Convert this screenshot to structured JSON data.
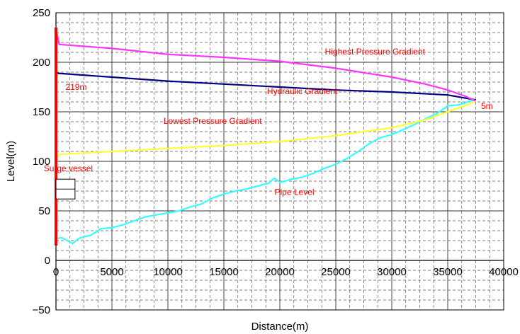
{
  "chart_data": {
    "type": "line",
    "xlabel": "Distance(m)",
    "ylabel": "Level(m)",
    "xlim": [
      0,
      40000
    ],
    "ylim": [
      -50,
      250
    ],
    "x_ticks": [
      0,
      5000,
      10000,
      15000,
      20000,
      25000,
      30000,
      35000,
      40000
    ],
    "y_ticks": [
      -50,
      0,
      50,
      100,
      150,
      200,
      250
    ],
    "grid": "major solid, minor dashed",
    "colors": {
      "highest": "#ff33ff",
      "hydraulic": "#000080",
      "lowest": "#ffff33",
      "pipe": "#33ffff",
      "vessel": "#ff0000"
    },
    "series": [
      {
        "key": "highest",
        "x": [
          0,
          300,
          5000,
          10000,
          15000,
          20000,
          25000,
          30000,
          33000,
          35000,
          36500,
          37500
        ],
        "y": [
          233,
          218,
          214,
          208,
          205,
          201,
          194,
          185,
          178,
          172,
          166,
          161
        ]
      },
      {
        "key": "hydraulic",
        "x": [
          0,
          5000,
          10000,
          15000,
          20000,
          25000,
          30000,
          35000,
          37500
        ],
        "y": [
          189,
          185,
          181,
          178,
          175,
          172,
          170,
          167,
          162
        ]
      },
      {
        "key": "lowest",
        "x": [
          0,
          300,
          5000,
          10000,
          15000,
          20000,
          25000,
          30000,
          33000,
          35000,
          37000,
          37500
        ],
        "y": [
          102,
          107,
          110,
          113,
          116,
          120,
          126,
          134,
          142,
          150,
          158,
          161
        ]
      },
      {
        "key": "pipe",
        "x": [
          0,
          500,
          1000,
          1500,
          2000,
          2500,
          3000,
          3500,
          4000,
          5000,
          6000,
          7000,
          8000,
          9000,
          10000,
          11000,
          12000,
          13000,
          14000,
          15000,
          16000,
          17000,
          18000,
          19000,
          19500,
          20000,
          20500,
          21000,
          22000,
          23000,
          24000,
          25000,
          26000,
          27000,
          28000,
          29000,
          30000,
          31000,
          32000,
          33000,
          34000,
          35000,
          36000,
          37000,
          37500
        ],
        "y": [
          22,
          23,
          20,
          17,
          22,
          24,
          25,
          28,
          32,
          33,
          36,
          40,
          44,
          46,
          48,
          50,
          54,
          57,
          63,
          67,
          70,
          72,
          75,
          78,
          83,
          79,
          80,
          82,
          84,
          88,
          93,
          97,
          103,
          110,
          118,
          124,
          127,
          132,
          137,
          143,
          148,
          156,
          157,
          161,
          162
        ]
      },
      {
        "key": "vessel",
        "x": [
          0,
          0
        ],
        "y": [
          15,
          235
        ]
      }
    ],
    "annotations": [
      {
        "key": "highest_label",
        "text": "Highest Pressure Gradient",
        "x": 28500,
        "y": 208
      },
      {
        "key": "hydraulic_label",
        "text": "Hydraulic Gradient",
        "x": 22000,
        "y": 168
      },
      {
        "key": "lowest_label",
        "text": "Lowest Pressure Gradient",
        "x": 14000,
        "y": 138
      },
      {
        "key": "pipe_label",
        "text": "Pipe Level",
        "x": 21300,
        "y": 66
      },
      {
        "key": "vessel_label",
        "text": "Surge vessel",
        "x": 1100,
        "y": 90
      },
      {
        "key": "top_label",
        "text": "219m",
        "x": 1800,
        "y": 172
      },
      {
        "key": "end_label",
        "text": "5m",
        "x": 38500,
        "y": 153
      }
    ],
    "vessel_box": {
      "x": [
        0,
        1700
      ],
      "y": [
        62,
        82
      ]
    }
  }
}
